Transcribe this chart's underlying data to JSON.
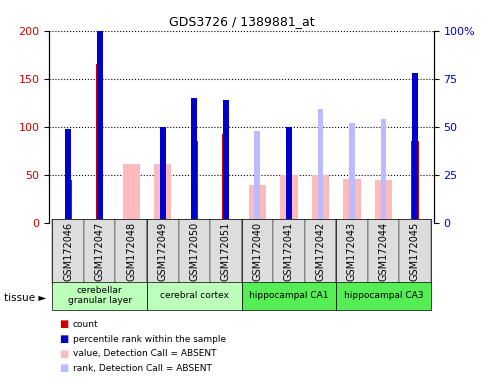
{
  "title": "GDS3726 / 1389881_at",
  "samples": [
    "GSM172046",
    "GSM172047",
    "GSM172048",
    "GSM172049",
    "GSM172050",
    "GSM172051",
    "GSM172040",
    "GSM172041",
    "GSM172042",
    "GSM172043",
    "GSM172044",
    "GSM172045"
  ],
  "count_values": [
    44,
    165,
    0,
    0,
    85,
    92,
    0,
    0,
    0,
    0,
    0,
    85
  ],
  "rank_values": [
    49,
    100,
    0,
    50,
    65,
    64,
    0,
    50,
    0,
    0,
    0,
    78
  ],
  "absent_value_values": [
    0,
    0,
    61,
    61,
    0,
    0,
    39,
    50,
    50,
    46,
    45,
    0
  ],
  "absent_rank_values": [
    0,
    0,
    0,
    0,
    0,
    63,
    48,
    0,
    59,
    52,
    54,
    0
  ],
  "tissue_groups": [
    {
      "label": "cerebellar\ngranular layer",
      "start": 0,
      "end": 3,
      "color": "#bbffbb"
    },
    {
      "label": "cerebral cortex",
      "start": 3,
      "end": 6,
      "color": "#bbffbb"
    },
    {
      "label": "hippocampal CA1",
      "start": 6,
      "end": 9,
      "color": "#55ee55"
    },
    {
      "label": "hippocampal CA3",
      "start": 9,
      "end": 12,
      "color": "#55ee55"
    }
  ],
  "ylim_left": [
    0,
    200
  ],
  "ylim_right": [
    0,
    100
  ],
  "yticks_left": [
    0,
    50,
    100,
    150,
    200
  ],
  "yticks_right": [
    0,
    25,
    50,
    75,
    100
  ],
  "color_count": "#cc0000",
  "color_rank": "#0000cc",
  "color_absent_value": "#ffbbbb",
  "color_absent_rank": "#bbbbff",
  "left_ylabel_color": "#cc0000",
  "right_ylabel_color": "#0000cc"
}
